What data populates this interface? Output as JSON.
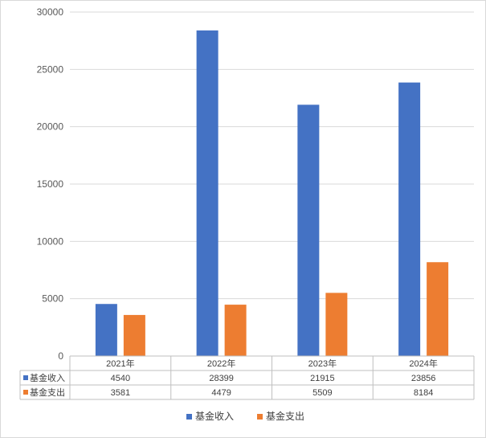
{
  "chart_data": {
    "type": "bar",
    "categories": [
      "2021年",
      "2022年",
      "2023年",
      "2024年"
    ],
    "series": [
      {
        "name": "基金收入",
        "values": [
          4540,
          28399,
          21915,
          23856
        ],
        "color": "#4472c4"
      },
      {
        "name": "基金支出",
        "values": [
          3581,
          4479,
          5509,
          8184
        ],
        "color": "#ed7d31"
      }
    ],
    "ylim": [
      0,
      30000
    ],
    "yticks": [
      0,
      5000,
      10000,
      15000,
      20000,
      25000,
      30000
    ],
    "grid": true,
    "legend": "bottom",
    "data_table": true
  }
}
